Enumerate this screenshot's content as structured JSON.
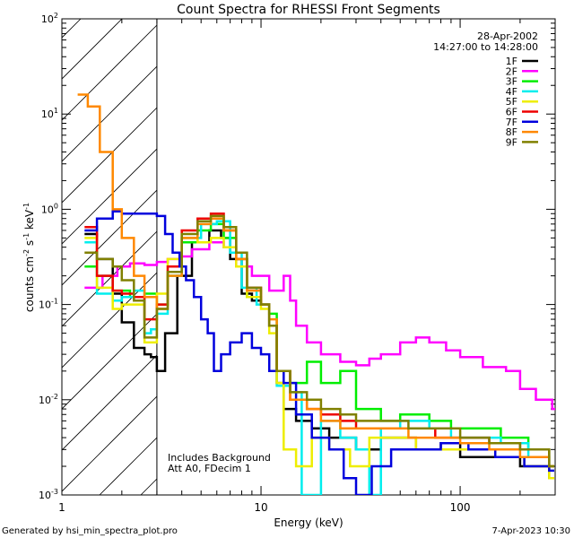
{
  "chart_data": {
    "type": "line",
    "title": "Count Spectra for RHESSI Front Segments",
    "xlabel": "Energy (keV)",
    "ylabel_main": "counts cm",
    "ylabel_exp1": "-2",
    "ylabel_mid": " s",
    "ylabel_exp2": "-1",
    "ylabel_end": " keV",
    "ylabel_exp3": "-1",
    "xscale": "log",
    "yscale": "log",
    "xlim": [
      1,
      300
    ],
    "ylim": [
      0.001,
      100
    ],
    "x_ticks": [
      {
        "value": 1,
        "label": "1"
      },
      {
        "value": 10,
        "label": "10"
      },
      {
        "value": 100,
        "label": "100"
      }
    ],
    "y_ticks": [
      {
        "value": 0.001,
        "base": "10",
        "exp": "-3"
      },
      {
        "value": 0.01,
        "base": "10",
        "exp": "-2"
      },
      {
        "value": 0.1,
        "base": "10",
        "exp": "-1"
      },
      {
        "value": 1,
        "base": "10",
        "exp": "0"
      },
      {
        "value": 10,
        "base": "10",
        "exp": "1"
      },
      {
        "value": 100,
        "base": "10",
        "exp": "2"
      }
    ],
    "hatched_region": [
      1,
      3
    ],
    "date": "28-Apr-2002",
    "time_range": "14:27:00 to 14:28:00",
    "annotations": [
      "Includes Background",
      "Att A0, FDecim 1"
    ],
    "series": [
      {
        "name": "1F",
        "color": "#000000",
        "points": [
          [
            1.3,
            0.55
          ],
          [
            1.5,
            0.3
          ],
          [
            1.8,
            0.13
          ],
          [
            2.0,
            0.065
          ],
          [
            2.3,
            0.035
          ],
          [
            2.6,
            0.03
          ],
          [
            2.8,
            0.028
          ],
          [
            3.0,
            0.02
          ],
          [
            3.3,
            0.05
          ],
          [
            3.8,
            0.2
          ],
          [
            4.5,
            0.45
          ],
          [
            5.5,
            0.6
          ],
          [
            6.3,
            0.5
          ],
          [
            7.0,
            0.3
          ],
          [
            8.0,
            0.13
          ],
          [
            9.0,
            0.11
          ],
          [
            10.0,
            0.1
          ],
          [
            11.0,
            0.06
          ],
          [
            12.0,
            0.015
          ],
          [
            13.0,
            0.008
          ],
          [
            15.0,
            0.006
          ],
          [
            18.0,
            0.005
          ],
          [
            22.0,
            0.004
          ],
          [
            30.0,
            0.003
          ],
          [
            40.0,
            0.004
          ],
          [
            60.0,
            0.003
          ],
          [
            80.0,
            0.0035
          ],
          [
            100.0,
            0.0025
          ],
          [
            140.0,
            0.0025
          ],
          [
            200.0,
            0.002
          ],
          [
            280.0,
            0.0015
          ]
        ]
      },
      {
        "name": "2F",
        "color": "#ff00ff",
        "points": [
          [
            1.3,
            0.15
          ],
          [
            1.6,
            0.2
          ],
          [
            1.9,
            0.25
          ],
          [
            2.2,
            0.27
          ],
          [
            2.6,
            0.26
          ],
          [
            3.0,
            0.28
          ],
          [
            3.4,
            0.3
          ],
          [
            3.9,
            0.32
          ],
          [
            4.5,
            0.38
          ],
          [
            5.5,
            0.45
          ],
          [
            6.5,
            0.4
          ],
          [
            7.5,
            0.25
          ],
          [
            9.0,
            0.2
          ],
          [
            11.0,
            0.14
          ],
          [
            13.0,
            0.2
          ],
          [
            14.0,
            0.11
          ],
          [
            15.0,
            0.06
          ],
          [
            17.0,
            0.04
          ],
          [
            20.0,
            0.03
          ],
          [
            25.0,
            0.025
          ],
          [
            30.0,
            0.023
          ],
          [
            35.0,
            0.027
          ],
          [
            40.0,
            0.03
          ],
          [
            50.0,
            0.04
          ],
          [
            60.0,
            0.045
          ],
          [
            70.0,
            0.04
          ],
          [
            85.0,
            0.033
          ],
          [
            100.0,
            0.028
          ],
          [
            130.0,
            0.022
          ],
          [
            170.0,
            0.02
          ],
          [
            200.0,
            0.013
          ],
          [
            240.0,
            0.01
          ],
          [
            290.0,
            0.008
          ]
        ]
      },
      {
        "name": "3F",
        "color": "#00ee00",
        "points": [
          [
            1.3,
            0.25
          ],
          [
            1.5,
            0.2
          ],
          [
            1.8,
            0.14
          ],
          [
            2.2,
            0.12
          ],
          [
            2.6,
            0.13
          ],
          [
            3.0,
            0.1
          ],
          [
            3.4,
            0.2
          ],
          [
            4.0,
            0.45
          ],
          [
            4.8,
            0.6
          ],
          [
            5.6,
            0.7
          ],
          [
            6.5,
            0.5
          ],
          [
            7.5,
            0.3
          ],
          [
            8.5,
            0.12
          ],
          [
            10.0,
            0.1
          ],
          [
            11.0,
            0.08
          ],
          [
            12.0,
            0.02
          ],
          [
            14.0,
            0.015
          ],
          [
            17.0,
            0.025
          ],
          [
            20.0,
            0.015
          ],
          [
            25.0,
            0.02
          ],
          [
            30.0,
            0.008
          ],
          [
            40.0,
            0.006
          ],
          [
            50.0,
            0.007
          ],
          [
            70.0,
            0.006
          ],
          [
            90.0,
            0.005
          ],
          [
            120.0,
            0.005
          ],
          [
            160.0,
            0.004
          ],
          [
            220.0,
            0.003
          ],
          [
            280.0,
            0.002
          ]
        ]
      },
      {
        "name": "4F",
        "color": "#00eeee",
        "points": [
          [
            1.3,
            0.45
          ],
          [
            1.5,
            0.13
          ],
          [
            1.8,
            0.11
          ],
          [
            2.0,
            0.12
          ],
          [
            2.3,
            0.14
          ],
          [
            2.6,
            0.05
          ],
          [
            2.8,
            0.055
          ],
          [
            3.0,
            0.08
          ],
          [
            3.4,
            0.2
          ],
          [
            4.0,
            0.5
          ],
          [
            5.0,
            0.7
          ],
          [
            6.0,
            0.75
          ],
          [
            7.0,
            0.35
          ],
          [
            8.0,
            0.15
          ],
          [
            9.5,
            0.1
          ],
          [
            11.0,
            0.06
          ],
          [
            12.0,
            0.014
          ],
          [
            14.0,
            0.012
          ],
          [
            16.0,
            0.001
          ],
          [
            20.0,
            0.006
          ],
          [
            25.0,
            0.004
          ],
          [
            30.0,
            0.003
          ],
          [
            35.0,
            0.001
          ],
          [
            40.0,
            0.005
          ],
          [
            50.0,
            0.006
          ],
          [
            70.0,
            0.005
          ],
          [
            90.0,
            0.004
          ],
          [
            120.0,
            0.004
          ],
          [
            160.0,
            0.0035
          ],
          [
            220.0,
            0.0025
          ],
          [
            280.0,
            0.002
          ]
        ]
      },
      {
        "name": "5F",
        "color": "#eeee00",
        "points": [
          [
            1.3,
            0.5
          ],
          [
            1.5,
            0.15
          ],
          [
            1.8,
            0.09
          ],
          [
            2.0,
            0.1
          ],
          [
            2.3,
            0.1
          ],
          [
            2.6,
            0.04
          ],
          [
            3.0,
            0.13
          ],
          [
            3.4,
            0.3
          ],
          [
            4.0,
            0.5
          ],
          [
            4.8,
            0.45
          ],
          [
            5.6,
            0.5
          ],
          [
            6.5,
            0.4
          ],
          [
            7.5,
            0.25
          ],
          [
            8.5,
            0.12
          ],
          [
            10.0,
            0.09
          ],
          [
            11.0,
            0.05
          ],
          [
            12.0,
            0.015
          ],
          [
            13.0,
            0.003
          ],
          [
            15.0,
            0.002
          ],
          [
            18.0,
            0.004
          ],
          [
            22.0,
            0.003
          ],
          [
            28.0,
            0.002
          ],
          [
            35.0,
            0.004
          ],
          [
            45.0,
            0.004
          ],
          [
            60.0,
            0.003
          ],
          [
            80.0,
            0.003
          ],
          [
            110.0,
            0.003
          ],
          [
            150.0,
            0.0025
          ],
          [
            210.0,
            0.002
          ],
          [
            280.0,
            0.0015
          ]
        ]
      },
      {
        "name": "6F",
        "color": "#ee0000",
        "points": [
          [
            1.3,
            0.65
          ],
          [
            1.5,
            0.2
          ],
          [
            1.8,
            0.14
          ],
          [
            2.0,
            0.13
          ],
          [
            2.3,
            0.12
          ],
          [
            2.6,
            0.07
          ],
          [
            3.0,
            0.1
          ],
          [
            3.4,
            0.25
          ],
          [
            4.0,
            0.6
          ],
          [
            4.8,
            0.8
          ],
          [
            5.6,
            0.9
          ],
          [
            6.5,
            0.6
          ],
          [
            7.5,
            0.3
          ],
          [
            8.5,
            0.15
          ],
          [
            10.0,
            0.1
          ],
          [
            11.0,
            0.06
          ],
          [
            12.0,
            0.02
          ],
          [
            14.0,
            0.01
          ],
          [
            17.0,
            0.008
          ],
          [
            20.0,
            0.007
          ],
          [
            25.0,
            0.006
          ],
          [
            30.0,
            0.005
          ],
          [
            40.0,
            0.005
          ],
          [
            55.0,
            0.005
          ],
          [
            75.0,
            0.004
          ],
          [
            100.0,
            0.004
          ],
          [
            140.0,
            0.0035
          ],
          [
            200.0,
            0.003
          ],
          [
            280.0,
            0.002
          ]
        ]
      },
      {
        "name": "7F",
        "color": "#0000dd",
        "points": [
          [
            1.3,
            0.6
          ],
          [
            1.5,
            0.8
          ],
          [
            1.8,
            0.95
          ],
          [
            2.0,
            0.9
          ],
          [
            2.3,
            0.9
          ],
          [
            2.6,
            0.9
          ],
          [
            3.0,
            0.85
          ],
          [
            3.3,
            0.55
          ],
          [
            3.6,
            0.35
          ],
          [
            3.9,
            0.25
          ],
          [
            4.2,
            0.18
          ],
          [
            4.6,
            0.12
          ],
          [
            5.0,
            0.07
          ],
          [
            5.4,
            0.05
          ],
          [
            5.8,
            0.02
          ],
          [
            6.3,
            0.03
          ],
          [
            7.0,
            0.04
          ],
          [
            8.0,
            0.05
          ],
          [
            9.0,
            0.035
          ],
          [
            10.0,
            0.03
          ],
          [
            11.0,
            0.02
          ],
          [
            13.0,
            0.015
          ],
          [
            15.0,
            0.007
          ],
          [
            18.0,
            0.004
          ],
          [
            22.0,
            0.003
          ],
          [
            26.0,
            0.0015
          ],
          [
            30.0,
            0.001
          ],
          [
            36.0,
            0.002
          ],
          [
            45.0,
            0.003
          ],
          [
            60.0,
            0.003
          ],
          [
            80.0,
            0.0035
          ],
          [
            110.0,
            0.003
          ],
          [
            150.0,
            0.0025
          ],
          [
            210.0,
            0.002
          ],
          [
            280.0,
            0.0018
          ]
        ]
      },
      {
        "name": "8F",
        "color": "#ff8800",
        "points": [
          [
            1.2,
            16
          ],
          [
            1.35,
            12
          ],
          [
            1.55,
            4
          ],
          [
            1.8,
            1.0
          ],
          [
            2.0,
            0.5
          ],
          [
            2.3,
            0.2
          ],
          [
            2.6,
            0.12
          ],
          [
            3.0,
            0.09
          ],
          [
            3.4,
            0.2
          ],
          [
            4.0,
            0.5
          ],
          [
            4.8,
            0.7
          ],
          [
            5.6,
            0.8
          ],
          [
            6.5,
            0.6
          ],
          [
            7.5,
            0.3
          ],
          [
            8.5,
            0.14
          ],
          [
            10.0,
            0.1
          ],
          [
            11.0,
            0.07
          ],
          [
            12.0,
            0.02
          ],
          [
            14.0,
            0.01
          ],
          [
            17.0,
            0.008
          ],
          [
            20.0,
            0.006
          ],
          [
            25.0,
            0.005
          ],
          [
            30.0,
            0.005
          ],
          [
            40.0,
            0.005
          ],
          [
            55.0,
            0.004
          ],
          [
            75.0,
            0.004
          ],
          [
            100.0,
            0.0035
          ],
          [
            140.0,
            0.003
          ],
          [
            200.0,
            0.0025
          ],
          [
            280.0,
            0.002
          ]
        ]
      },
      {
        "name": "9F",
        "color": "#808000",
        "points": [
          [
            1.3,
            0.35
          ],
          [
            1.5,
            0.3
          ],
          [
            1.8,
            0.25
          ],
          [
            2.0,
            0.18
          ],
          [
            2.3,
            0.11
          ],
          [
            2.6,
            0.045
          ],
          [
            3.0,
            0.09
          ],
          [
            3.4,
            0.22
          ],
          [
            4.0,
            0.55
          ],
          [
            4.8,
            0.75
          ],
          [
            5.6,
            0.85
          ],
          [
            6.5,
            0.65
          ],
          [
            7.5,
            0.35
          ],
          [
            8.5,
            0.15
          ],
          [
            10.0,
            0.1
          ],
          [
            11.0,
            0.06
          ],
          [
            12.0,
            0.02
          ],
          [
            14.0,
            0.012
          ],
          [
            17.0,
            0.01
          ],
          [
            20.0,
            0.008
          ],
          [
            25.0,
            0.007
          ],
          [
            30.0,
            0.006
          ],
          [
            40.0,
            0.006
          ],
          [
            55.0,
            0.005
          ],
          [
            75.0,
            0.005
          ],
          [
            100.0,
            0.004
          ],
          [
            140.0,
            0.0035
          ],
          [
            200.0,
            0.003
          ],
          [
            280.0,
            0.002
          ]
        ]
      }
    ]
  },
  "footer": {
    "generated_by": "Generated by hsi_min_spectra_plot.pro",
    "timestamp": "7-Apr-2023 10:30"
  }
}
